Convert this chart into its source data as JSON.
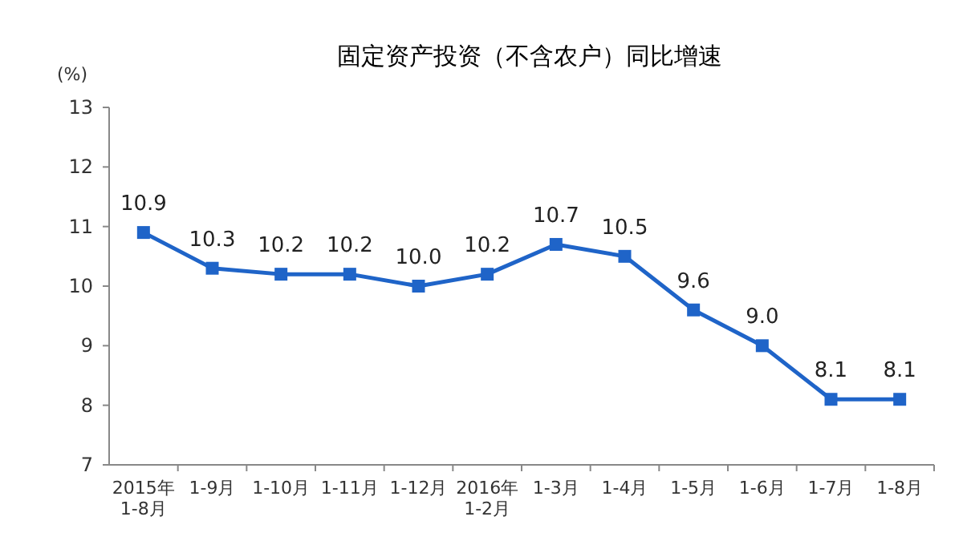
{
  "chart_data": {
    "type": "line",
    "title": "固定资产投资（不含农户）同比增速",
    "ylabel": "(%)",
    "categories": [
      "2015年\n1-8月",
      "1-9月",
      "1-10月",
      "1-11月",
      "1-12月",
      "2016年\n1-2月",
      "1-3月",
      "1-4月",
      "1-5月",
      "1-6月",
      "1-7月",
      "1-8月"
    ],
    "series": [
      {
        "color": "#1f64c8",
        "values": [
          10.9,
          10.3,
          10.2,
          10.2,
          10.0,
          10.2,
          10.7,
          10.5,
          9.6,
          9.0,
          8.1,
          8.1
        ],
        "value_labels": [
          "10.9",
          "10.3",
          "10.2",
          "10.2",
          "10.0",
          "10.2",
          "10.7",
          "10.5",
          "9.6",
          "9.0",
          "8.1",
          "8.1"
        ]
      }
    ],
    "ylim": [
      7,
      13
    ],
    "yticks": [
      7,
      8,
      9,
      10,
      11,
      12,
      13
    ],
    "marker": "square",
    "line_style": "solid",
    "grid": false
  }
}
